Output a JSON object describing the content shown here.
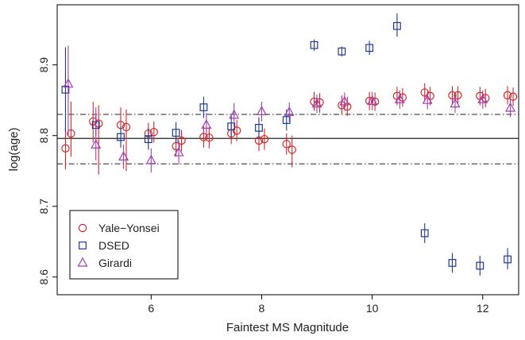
{
  "chart_data": {
    "type": "scatter",
    "xlabel": "Faintest MS Magnitude",
    "ylabel": "log(age)",
    "xlim": [
      4.3,
      12.65
    ],
    "ylim": [
      8.575,
      8.985
    ],
    "x_ticks": [
      6,
      8,
      10,
      12
    ],
    "y_ticks": [
      8.6,
      8.7,
      8.8,
      8.9
    ],
    "x_tick_labels": [
      "6",
      "8",
      "10",
      "12"
    ],
    "y_tick_labels": [
      "8.6",
      "8.7",
      "8.8",
      "8.9"
    ],
    "grid": false,
    "legend_position": "bottom-left",
    "reference_lines": [
      {
        "style": "solid",
        "y": 8.796
      },
      {
        "style": "dashdot",
        "y": 8.83
      },
      {
        "style": "dashdot",
        "y": 8.76
      }
    ],
    "series": [
      {
        "name": "Yale−Yonsei",
        "marker": "circle",
        "color": "#d62728",
        "points": [
          {
            "x": 4.45,
            "y": 8.782,
            "lo": 8.752,
            "hi": 8.812
          },
          {
            "x": 4.55,
            "y": 8.803,
            "lo": 8.77,
            "hi": 8.848
          },
          {
            "x": 4.95,
            "y": 8.82,
            "lo": 8.79,
            "hi": 8.848
          },
          {
            "x": 5.05,
            "y": 8.817,
            "lo": 8.745,
            "hi": 8.843
          },
          {
            "x": 5.45,
            "y": 8.815,
            "lo": 8.79,
            "hi": 8.84
          },
          {
            "x": 5.55,
            "y": 8.812,
            "lo": 8.75,
            "hi": 8.837
          },
          {
            "x": 5.95,
            "y": 8.803,
            "lo": 8.788,
            "hi": 8.818
          },
          {
            "x": 6.05,
            "y": 8.805,
            "lo": 8.79,
            "hi": 8.82
          },
          {
            "x": 6.45,
            "y": 8.785,
            "lo": 8.77,
            "hi": 8.8
          },
          {
            "x": 6.55,
            "y": 8.793,
            "lo": 8.778,
            "hi": 8.808
          },
          {
            "x": 6.95,
            "y": 8.798,
            "lo": 8.783,
            "hi": 8.813
          },
          {
            "x": 7.05,
            "y": 8.797,
            "lo": 8.782,
            "hi": 8.812
          },
          {
            "x": 7.45,
            "y": 8.803,
            "lo": 8.788,
            "hi": 8.818
          },
          {
            "x": 7.55,
            "y": 8.807,
            "lo": 8.792,
            "hi": 8.822
          },
          {
            "x": 7.95,
            "y": 8.793,
            "lo": 8.778,
            "hi": 8.808
          },
          {
            "x": 8.05,
            "y": 8.795,
            "lo": 8.78,
            "hi": 8.81
          },
          {
            "x": 8.45,
            "y": 8.788,
            "lo": 8.773,
            "hi": 8.803
          },
          {
            "x": 8.55,
            "y": 8.78,
            "lo": 8.755,
            "hi": 8.8
          },
          {
            "x": 8.95,
            "y": 8.848,
            "lo": 8.835,
            "hi": 8.862
          },
          {
            "x": 9.05,
            "y": 8.847,
            "lo": 8.832,
            "hi": 8.86
          },
          {
            "x": 9.45,
            "y": 8.843,
            "lo": 8.83,
            "hi": 8.857
          },
          {
            "x": 9.55,
            "y": 8.841,
            "lo": 8.828,
            "hi": 8.855
          },
          {
            "x": 9.95,
            "y": 8.849,
            "lo": 8.836,
            "hi": 8.862
          },
          {
            "x": 10.05,
            "y": 8.848,
            "lo": 8.835,
            "hi": 8.861
          },
          {
            "x": 10.45,
            "y": 8.856,
            "lo": 8.843,
            "hi": 8.869
          },
          {
            "x": 10.55,
            "y": 8.854,
            "lo": 8.841,
            "hi": 8.867
          },
          {
            "x": 10.95,
            "y": 8.861,
            "lo": 8.848,
            "hi": 8.874
          },
          {
            "x": 11.05,
            "y": 8.856,
            "lo": 8.843,
            "hi": 8.869
          },
          {
            "x": 11.45,
            "y": 8.857,
            "lo": 8.844,
            "hi": 8.87
          },
          {
            "x": 11.55,
            "y": 8.857,
            "lo": 8.844,
            "hi": 8.87
          },
          {
            "x": 11.95,
            "y": 8.856,
            "lo": 8.843,
            "hi": 8.869
          },
          {
            "x": 12.05,
            "y": 8.853,
            "lo": 8.84,
            "hi": 8.866
          },
          {
            "x": 12.45,
            "y": 8.857,
            "lo": 8.844,
            "hi": 8.87
          },
          {
            "x": 12.55,
            "y": 8.855,
            "lo": 8.842,
            "hi": 8.868
          }
        ]
      },
      {
        "name": "DSED",
        "marker": "square",
        "color": "#1f3a93",
        "points": [
          {
            "x": 4.45,
            "y": 8.865,
            "lo": 8.805,
            "hi": 8.925
          },
          {
            "x": 5.0,
            "y": 8.815,
            "lo": 8.8,
            "hi": 8.83
          },
          {
            "x": 5.45,
            "y": 8.798,
            "lo": 8.783,
            "hi": 8.813
          },
          {
            "x": 5.95,
            "y": 8.795,
            "lo": 8.78,
            "hi": 8.81
          },
          {
            "x": 6.45,
            "y": 8.804,
            "lo": 8.789,
            "hi": 8.819
          },
          {
            "x": 6.95,
            "y": 8.84,
            "lo": 8.825,
            "hi": 8.855
          },
          {
            "x": 7.45,
            "y": 8.813,
            "lo": 8.798,
            "hi": 8.828
          },
          {
            "x": 7.95,
            "y": 8.811,
            "lo": 8.796,
            "hi": 8.826
          },
          {
            "x": 8.45,
            "y": 8.822,
            "lo": 8.807,
            "hi": 8.837
          },
          {
            "x": 8.95,
            "y": 8.928,
            "lo": 8.92,
            "hi": 8.936
          },
          {
            "x": 9.45,
            "y": 8.919,
            "lo": 8.912,
            "hi": 8.926
          },
          {
            "x": 9.95,
            "y": 8.924,
            "lo": 8.914,
            "hi": 8.934
          },
          {
            "x": 10.45,
            "y": 8.955,
            "lo": 8.94,
            "hi": 8.973
          },
          {
            "x": 10.95,
            "y": 8.662,
            "lo": 8.648,
            "hi": 8.676
          },
          {
            "x": 11.45,
            "y": 8.62,
            "lo": 8.606,
            "hi": 8.634
          },
          {
            "x": 11.95,
            "y": 8.616,
            "lo": 8.602,
            "hi": 8.63
          },
          {
            "x": 12.45,
            "y": 8.625,
            "lo": 8.611,
            "hi": 8.641
          }
        ]
      },
      {
        "name": "Girardi",
        "marker": "triangle",
        "color": "#a33fb4",
        "points": [
          {
            "x": 4.5,
            "y": 8.873,
            "lo": 8.8,
            "hi": 8.927
          },
          {
            "x": 5.0,
            "y": 8.787,
            "lo": 8.765,
            "hi": 8.84
          },
          {
            "x": 5.5,
            "y": 8.77,
            "lo": 8.753,
            "hi": 8.787
          },
          {
            "x": 6.0,
            "y": 8.765,
            "lo": 8.748,
            "hi": 8.782
          },
          {
            "x": 6.5,
            "y": 8.776,
            "lo": 8.759,
            "hi": 8.793
          },
          {
            "x": 7.0,
            "y": 8.815,
            "lo": 8.798,
            "hi": 8.832
          },
          {
            "x": 7.5,
            "y": 8.829,
            "lo": 8.812,
            "hi": 8.846
          },
          {
            "x": 8.0,
            "y": 8.834,
            "lo": 8.82,
            "hi": 8.848
          },
          {
            "x": 8.5,
            "y": 8.833,
            "lo": 8.819,
            "hi": 8.847
          },
          {
            "x": 9.0,
            "y": 8.845,
            "lo": 8.832,
            "hi": 8.858
          },
          {
            "x": 9.5,
            "y": 8.848,
            "lo": 8.835,
            "hi": 8.861
          },
          {
            "x": 10.0,
            "y": 8.849,
            "lo": 8.836,
            "hi": 8.862
          },
          {
            "x": 10.5,
            "y": 8.851,
            "lo": 8.838,
            "hi": 8.864
          },
          {
            "x": 11.0,
            "y": 8.85,
            "lo": 8.837,
            "hi": 8.863
          },
          {
            "x": 11.5,
            "y": 8.845,
            "lo": 8.832,
            "hi": 8.858
          },
          {
            "x": 12.0,
            "y": 8.851,
            "lo": 8.838,
            "hi": 8.864
          },
          {
            "x": 12.5,
            "y": 8.839,
            "lo": 8.826,
            "hi": 8.852
          }
        ]
      }
    ]
  }
}
